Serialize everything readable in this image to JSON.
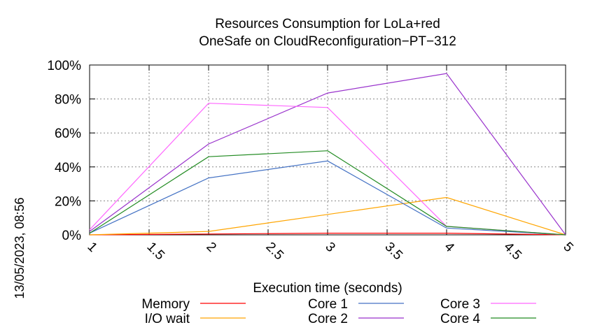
{
  "chart_data": {
    "type": "line",
    "title": [
      "Resources Consumption for LoLa+red",
      "OneSafe on CloudReconfiguration−PT−312"
    ],
    "xlabel": "Execution time (seconds)",
    "ylabel": "",
    "side_label": "13/05/2023, 08:56",
    "xlim": [
      1,
      5
    ],
    "ylim": [
      0,
      100
    ],
    "x_ticks": [
      "1",
      "1.5",
      "2",
      "2.5",
      "3",
      "3.5",
      "4",
      "4.5",
      "5"
    ],
    "y_ticks": [
      "0%",
      "20%",
      "40%",
      "60%",
      "80%",
      "100%"
    ],
    "grid": true,
    "x": [
      1,
      2,
      3,
      4,
      5
    ],
    "series": [
      {
        "name": "Memory",
        "color": "#ff0000",
        "values": [
          0,
          0.5,
          1,
          1,
          0
        ]
      },
      {
        "name": "I/O wait",
        "color": "#ffa500",
        "values": [
          0,
          2,
          12,
          22,
          0
        ]
      },
      {
        "name": "Core 1",
        "color": "#4472c4",
        "values": [
          1,
          33.5,
          43.5,
          4,
          0
        ]
      },
      {
        "name": "Core 2",
        "color": "#9932cc",
        "values": [
          2,
          53.5,
          83.5,
          95,
          0
        ]
      },
      {
        "name": "Core 3",
        "color": "#ff66ff",
        "values": [
          3,
          77.5,
          75,
          5,
          0
        ]
      },
      {
        "name": "Core 4",
        "color": "#228b22",
        "values": [
          1,
          46,
          49.5,
          5,
          0
        ]
      }
    ],
    "legend_position": "bottom"
  }
}
